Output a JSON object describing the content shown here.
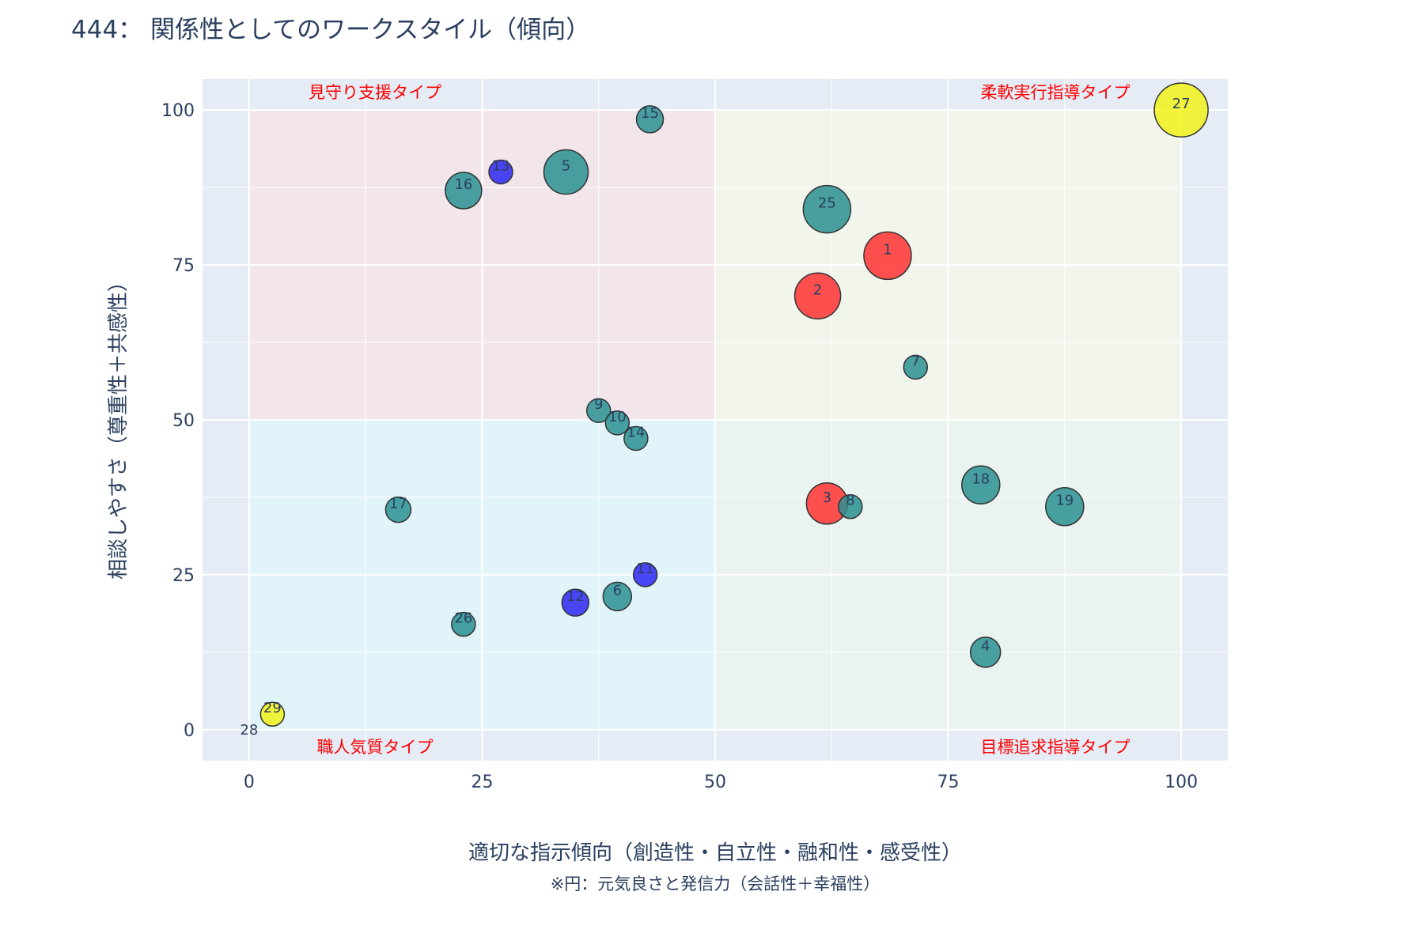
{
  "chart_data": {
    "type": "scatter",
    "title": "444： 関係性としてのワークスタイル（傾向）",
    "xlabel": "適切な指示傾向（創造性・自立性・融和性・感受性）",
    "ylabel": "相談しやすさ（尊重性＋共感性）",
    "note": "※円：元気良さと発信力（会話性＋幸福性）",
    "xlim": [
      -5,
      105
    ],
    "ylim": [
      -5,
      105
    ],
    "xticks": [
      0,
      25,
      50,
      75,
      100
    ],
    "yticks": [
      0,
      25,
      50,
      75,
      100
    ],
    "grid": true,
    "quadrants": [
      {
        "label": "見守り支援タイプ",
        "x": [
          0,
          50
        ],
        "y": [
          50,
          100
        ],
        "color": "#f2e6ea",
        "label_pos": "top-left"
      },
      {
        "label": "柔軟実行指導タイプ",
        "x": [
          50,
          100
        ],
        "y": [
          50,
          100
        ],
        "color": "#f1f5ec",
        "label_pos": "top-right"
      },
      {
        "label": "職人気質タイプ",
        "x": [
          0,
          50
        ],
        "y": [
          0,
          50
        ],
        "color": "#e0f4fa",
        "label_pos": "bottom-left"
      },
      {
        "label": "目標追求指導タイプ",
        "x": [
          50,
          100
        ],
        "y": [
          0,
          50
        ],
        "color": "#eaf3ef",
        "label_pos": "bottom-right"
      }
    ],
    "colors": {
      "teal": "#2a8f91",
      "red": "#ff3333",
      "blue": "#2d26f2",
      "yellow": "#f2f21a",
      "quad_label": "#ff0000",
      "plot_bg": "#e5ecf6"
    },
    "points": [
      {
        "label": "1",
        "x": 68.5,
        "y": 76.5,
        "size": 30,
        "group": "red"
      },
      {
        "label": "2",
        "x": 61,
        "y": 70,
        "size": 29,
        "group": "red"
      },
      {
        "label": "3",
        "x": 62,
        "y": 36.5,
        "size": 26,
        "group": "red"
      },
      {
        "label": "4",
        "x": 79,
        "y": 12.5,
        "size": 19,
        "group": "teal"
      },
      {
        "label": "5",
        "x": 34,
        "y": 90,
        "size": 28,
        "group": "teal"
      },
      {
        "label": "6",
        "x": 39.5,
        "y": 21.5,
        "size": 18,
        "group": "teal"
      },
      {
        "label": "7",
        "x": 71.5,
        "y": 58.5,
        "size": 15,
        "group": "teal"
      },
      {
        "label": "8",
        "x": 64.5,
        "y": 36,
        "size": 15,
        "group": "teal"
      },
      {
        "label": "9",
        "x": 37.5,
        "y": 51.5,
        "size": 15,
        "group": "teal"
      },
      {
        "label": "10",
        "x": 39.5,
        "y": 49.5,
        "size": 15,
        "group": "teal"
      },
      {
        "label": "11",
        "x": 42.5,
        "y": 25,
        "size": 15,
        "group": "blue"
      },
      {
        "label": "12",
        "x": 35,
        "y": 20.5,
        "size": 17,
        "group": "blue"
      },
      {
        "label": "13",
        "x": 27,
        "y": 90,
        "size": 15,
        "group": "blue"
      },
      {
        "label": "14",
        "x": 41.5,
        "y": 47,
        "size": 15,
        "group": "teal"
      },
      {
        "label": "15",
        "x": 43,
        "y": 98.5,
        "size": 17,
        "group": "teal"
      },
      {
        "label": "16",
        "x": 23,
        "y": 87,
        "size": 23,
        "group": "teal"
      },
      {
        "label": "17",
        "x": 16,
        "y": 35.5,
        "size": 16,
        "group": "teal"
      },
      {
        "label": "18",
        "x": 78.5,
        "y": 39.5,
        "size": 24,
        "group": "teal"
      },
      {
        "label": "19",
        "x": 87.5,
        "y": 36,
        "size": 24,
        "group": "teal"
      },
      {
        "label": "25",
        "x": 62,
        "y": 84,
        "size": 30,
        "group": "teal"
      },
      {
        "label": "26",
        "x": 23,
        "y": 17,
        "size": 15,
        "group": "teal"
      },
      {
        "label": "27",
        "x": 100,
        "y": 100,
        "size": 34,
        "group": "yellow"
      },
      {
        "label": "28",
        "x": 0,
        "y": 0,
        "size": 0,
        "group": "teal"
      },
      {
        "label": "29",
        "x": 2.5,
        "y": 2.5,
        "size": 15,
        "group": "yellow"
      }
    ]
  }
}
